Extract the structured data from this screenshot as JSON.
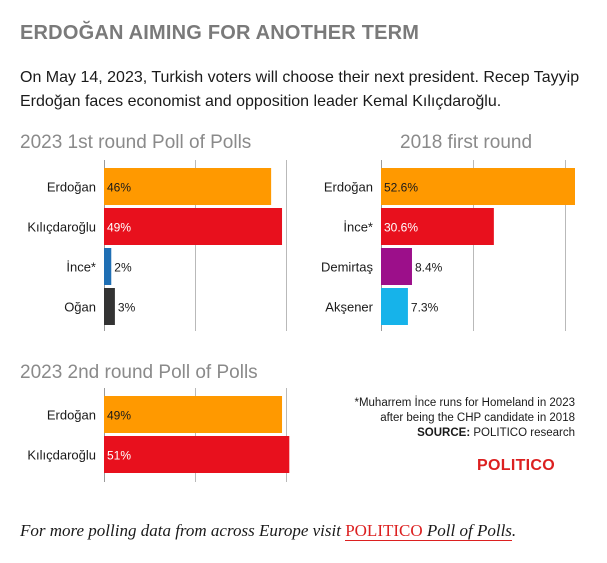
{
  "headline": "ERDOĞAN AIMING FOR ANOTHER TERM",
  "dek": "On May 14, 2023, Turkish voters will choose their next president. Recep Tayyip Erdoğan faces economist and opposition leader Kemal Kılıçdaroğlu.",
  "note": {
    "line1": "*Muharrem İnce runs for Homeland in 2023",
    "line2": "after being the CHP candidate in 2018",
    "source_label": "SOURCE:",
    "source_text": "POLITICO research"
  },
  "brand": "POLITICO",
  "footer": {
    "prefix": "For more polling data from across Europe visit ",
    "link_brand": "POLITICO",
    "link_rest": " Poll of Polls",
    "suffix": "."
  },
  "colors": {
    "orange": "#ff9900",
    "red": "#e8101d",
    "blue": "#1f6fb4",
    "dark": "#333333",
    "purple": "#9c0f8a",
    "cyan": "#16b3ea",
    "grid": "#b9b9b9",
    "politico_red": "#dc2020"
  },
  "chart_data": [
    {
      "type": "bar",
      "orientation": "horizontal",
      "title": "2023 1st round Poll of Polls",
      "categories": [
        "Erdoğan",
        "Kılıçdaroğlu",
        "İnce*",
        "Oğan"
      ],
      "values": [
        46,
        49,
        2,
        3
      ],
      "value_labels": [
        "46%",
        "49%",
        "2%",
        "3%"
      ],
      "colors": [
        "#ff9900",
        "#e8101d",
        "#1f6fb4",
        "#333333"
      ],
      "label_colors": [
        "#1a1a1a",
        "#ffffff",
        "#1a1a1a",
        "#1a1a1a"
      ],
      "xlim": [
        0,
        60
      ],
      "gridlines": [
        0,
        25,
        50
      ],
      "unit": "%"
    },
    {
      "type": "bar",
      "orientation": "horizontal",
      "title": "2018 first round",
      "categories": [
        "Erdoğan",
        "İnce*",
        "Demirtaş",
        "Akşener"
      ],
      "values": [
        52.6,
        30.6,
        8.4,
        7.3
      ],
      "value_labels": [
        "52.6%",
        "30.6%",
        "8.4%",
        "7.3%"
      ],
      "colors": [
        "#ff9900",
        "#e8101d",
        "#9c0f8a",
        "#16b3ea"
      ],
      "label_colors": [
        "#1a1a1a",
        "#ffffff",
        "#1a1a1a",
        "#1a1a1a"
      ],
      "xlim": [
        0,
        52.6
      ],
      "gridlines": [
        0,
        25,
        50
      ],
      "unit": "%"
    },
    {
      "type": "bar",
      "orientation": "horizontal",
      "title": "2023 2nd round Poll of Polls",
      "categories": [
        "Erdoğan",
        "Kılıçdaroğlu"
      ],
      "values": [
        49,
        51
      ],
      "value_labels": [
        "49%",
        "51%"
      ],
      "colors": [
        "#ff9900",
        "#e8101d"
      ],
      "label_colors": [
        "#1a1a1a",
        "#ffffff"
      ],
      "xlim": [
        0,
        60
      ],
      "gridlines": [
        0,
        25,
        50
      ],
      "unit": "%"
    }
  ]
}
